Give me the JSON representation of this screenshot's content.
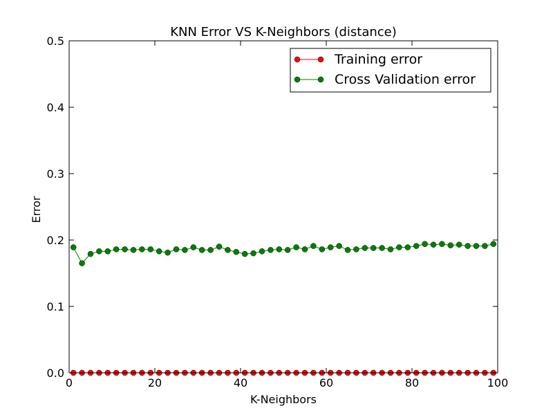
{
  "chart_data": {
    "type": "line",
    "title": "KNN Error VS K-Neighbors (distance)",
    "xlabel": "K-Neighbors",
    "ylabel": "Error",
    "xlim": [
      0,
      100
    ],
    "ylim": [
      0,
      0.5
    ],
    "xticks": [
      0,
      20,
      40,
      60,
      80,
      100
    ],
    "yticks": [
      0.0,
      0.1,
      0.2,
      0.3,
      0.4,
      0.5
    ],
    "xtick_labels": [
      "0",
      "20",
      "40",
      "60",
      "80",
      "100"
    ],
    "ytick_labels": [
      "0.0",
      "0.1",
      "0.2",
      "0.3",
      "0.4",
      "0.5"
    ],
    "grid": false,
    "legend_position": "top-right",
    "x": [
      1,
      3,
      5,
      7,
      9,
      11,
      13,
      15,
      17,
      19,
      21,
      23,
      25,
      27,
      29,
      31,
      33,
      35,
      37,
      39,
      41,
      43,
      45,
      47,
      49,
      51,
      53,
      55,
      57,
      59,
      61,
      63,
      65,
      67,
      69,
      71,
      73,
      75,
      77,
      79,
      81,
      83,
      85,
      87,
      89,
      91,
      93,
      95,
      97,
      99
    ],
    "series": [
      {
        "name": "Training error",
        "color": "#ff0000",
        "values": [
          0,
          0,
          0,
          0,
          0,
          0,
          0,
          0,
          0,
          0,
          0,
          0,
          0,
          0,
          0,
          0,
          0,
          0,
          0,
          0,
          0,
          0,
          0,
          0,
          0,
          0,
          0,
          0,
          0,
          0,
          0,
          0,
          0,
          0,
          0,
          0,
          0,
          0,
          0,
          0,
          0,
          0,
          0,
          0,
          0,
          0,
          0,
          0,
          0,
          0
        ]
      },
      {
        "name": "Cross Validation error",
        "color": "#008000",
        "values": [
          0.189,
          0.165,
          0.179,
          0.183,
          0.183,
          0.186,
          0.186,
          0.185,
          0.186,
          0.186,
          0.183,
          0.181,
          0.186,
          0.185,
          0.189,
          0.185,
          0.185,
          0.19,
          0.185,
          0.182,
          0.179,
          0.18,
          0.183,
          0.185,
          0.186,
          0.185,
          0.189,
          0.186,
          0.191,
          0.186,
          0.189,
          0.191,
          0.185,
          0.186,
          0.188,
          0.188,
          0.188,
          0.186,
          0.189,
          0.189,
          0.191,
          0.194,
          0.193,
          0.194,
          0.192,
          0.193,
          0.191,
          0.191,
          0.191,
          0.194
        ]
      }
    ]
  }
}
